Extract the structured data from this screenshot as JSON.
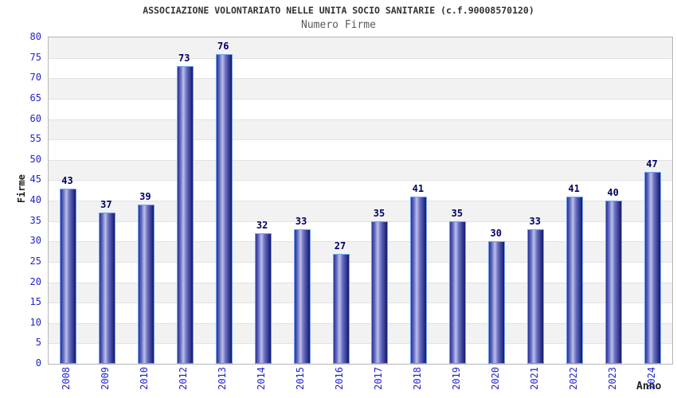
{
  "chart_data": {
    "type": "bar",
    "title": "ASSOCIAZIONE VOLONTARIATO NELLE UNITA SOCIO SANITARIE (c.f.90008570120)",
    "subtitle": "Numero Firme",
    "xlabel": "Anno",
    "ylabel": "Firme",
    "categories": [
      "2008",
      "2009",
      "2010",
      "2012",
      "2013",
      "2014",
      "2015",
      "2016",
      "2017",
      "2018",
      "2019",
      "2020",
      "2021",
      "2022",
      "2023",
      "2024"
    ],
    "values": [
      43,
      37,
      39,
      73,
      76,
      32,
      33,
      27,
      35,
      41,
      35,
      30,
      33,
      41,
      40,
      47
    ],
    "ylim": [
      0,
      80
    ],
    "ytick_step": 5,
    "grid": "horizontal alternating bands gray/white with light gridlines every 5 units",
    "legend": "none",
    "bar_value_labels": [
      "43",
      "37",
      "39",
      "73",
      "76",
      "32",
      "33",
      "27",
      "35",
      "41",
      "35",
      "30",
      "33",
      "41",
      "40",
      "47"
    ],
    "colors": {
      "tick_label_blue": "#2222cc",
      "value_label_navy": "#000066",
      "title_color": "#333333",
      "subtitle_color": "#5a5a5a",
      "band_gray": "#f2f2f2",
      "gridline": "#e2e2e2",
      "plot_border": "#b6b6b6",
      "bar_border_lightblue": "#6ea4ec",
      "bar_edge": "#2b2f96",
      "bar_mid": "#6a71c4",
      "bar_highlight": "#bcc0e8",
      "bar_dark": "#14166e"
    }
  }
}
